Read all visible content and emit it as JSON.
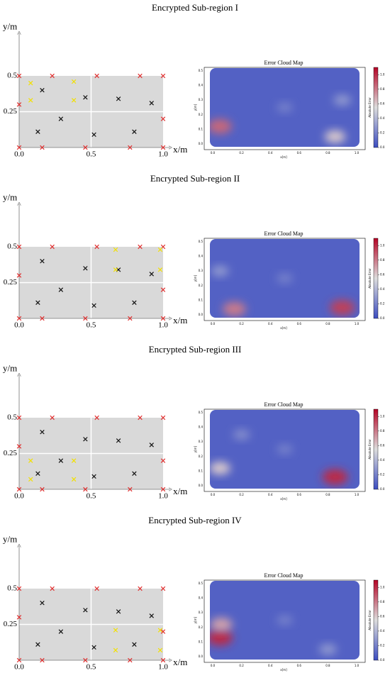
{
  "chart_data": [
    {
      "type": "scatter",
      "title": "Encrypted Sub-region I",
      "xlabel": "x/m",
      "ylabel": "y/m",
      "xlim": [
        0,
        1.05
      ],
      "ylim": [
        0,
        0.8
      ],
      "xticks": [
        {
          "value": 0,
          "label": "0.0"
        },
        0.5,
        {
          "value": 1,
          "label": "1.0"
        }
      ],
      "yticks": [
        0.25,
        0.5
      ],
      "region_color": "#d9d9d9",
      "series": [
        {
          "color": "#e03030",
          "x": [
            0,
            0.23,
            0.54,
            0.84,
            1.0,
            0,
            0.16,
            0.46,
            0.77,
            1.0,
            0,
            1.0
          ],
          "y": [
            0.5,
            0.5,
            0.5,
            0.5,
            0.5,
            0,
            0,
            0,
            0,
            0,
            0.3,
            0.2
          ]
        },
        {
          "color": "#111111",
          "x": [
            0.16,
            0.46,
            0.69,
            0.92,
            0.29,
            0.13,
            0.52,
            0.8
          ],
          "y": [
            0.4,
            0.35,
            0.34,
            0.31,
            0.2,
            0.11,
            0.09,
            0.11
          ]
        },
        {
          "color": "#f2e000",
          "x": [
            0.08,
            0.08,
            0.38,
            0.38
          ],
          "y": [
            0.45,
            0.33,
            0.46,
            0.33
          ]
        }
      ]
    },
    {
      "type": "heatmap",
      "title": "Error Cloud Map",
      "xlabel": "x[m]",
      "ylabel": "y[m]",
      "colorbar_label": "Absolute Error",
      "colormap": "coolwarm",
      "xlim": [
        0,
        1
      ],
      "ylim": [
        0,
        0.5
      ],
      "clim": [
        0,
        1.1
      ],
      "background_value": 0.08,
      "xticks": [
        {
          "value": 0,
          "label": "0.0"
        },
        0.2,
        0.4,
        0.6,
        0.8,
        {
          "value": 1,
          "label": "1.0"
        }
      ],
      "yticks": [
        {
          "value": 0,
          "label": "0.0"
        },
        0.1,
        0.2,
        0.3,
        0.4,
        0.5
      ],
      "cticks": [
        {
          "value": 0,
          "label": "0.0"
        },
        0.2,
        0.4,
        0.6,
        0.8,
        {
          "value": 1,
          "label": "1.0"
        }
      ],
      "hotspots": [
        {
          "x": 0.05,
          "y": 0.12,
          "value": 0.85
        },
        {
          "x": 0.85,
          "y": 0.05,
          "value": 0.6
        },
        {
          "x": 0.5,
          "y": 0.25,
          "value": 0.2
        },
        {
          "x": 0.9,
          "y": 0.3,
          "value": 0.3
        }
      ]
    },
    {
      "type": "scatter",
      "title": "Encrypted Sub-region II",
      "xlabel": "x/m",
      "ylabel": "y/m",
      "xlim": [
        0,
        1.05
      ],
      "ylim": [
        0,
        0.8
      ],
      "xticks": [
        {
          "value": 0,
          "label": "0.0"
        },
        0.5,
        {
          "value": 1,
          "label": "1.0"
        }
      ],
      "yticks": [
        0.25,
        0.5
      ],
      "region_color": "#d9d9d9",
      "series": [
        {
          "color": "#e03030",
          "x": [
            0,
            0.23,
            0.54,
            0.84,
            1.0,
            0,
            0.16,
            0.46,
            0.77,
            1.0,
            0,
            1.0
          ],
          "y": [
            0.5,
            0.5,
            0.5,
            0.5,
            0.5,
            0,
            0,
            0,
            0,
            0,
            0.3,
            0.2
          ]
        },
        {
          "color": "#111111",
          "x": [
            0.16,
            0.46,
            0.69,
            0.92,
            0.29,
            0.13,
            0.52,
            0.8
          ],
          "y": [
            0.4,
            0.35,
            0.34,
            0.31,
            0.2,
            0.11,
            0.09,
            0.11
          ]
        },
        {
          "color": "#f2e000",
          "x": [
            0.67,
            0.67,
            0.98,
            0.98
          ],
          "y": [
            0.48,
            0.34,
            0.48,
            0.34
          ]
        }
      ]
    },
    {
      "type": "heatmap",
      "title": "Error Cloud Map",
      "xlabel": "x[m]",
      "ylabel": "y[m]",
      "colorbar_label": "Absolute Error",
      "colormap": "coolwarm",
      "xlim": [
        0,
        1
      ],
      "ylim": [
        0,
        0.5
      ],
      "clim": [
        0,
        1.1
      ],
      "background_value": 0.08,
      "xticks": [
        {
          "value": 0,
          "label": "0.0"
        },
        0.2,
        0.4,
        0.6,
        0.8,
        {
          "value": 1,
          "label": "1.0"
        }
      ],
      "yticks": [
        {
          "value": 0,
          "label": "0.0"
        },
        0.1,
        0.2,
        0.3,
        0.4,
        0.5
      ],
      "cticks": [
        {
          "value": 0,
          "label": "0.0"
        },
        0.2,
        0.4,
        0.6,
        0.8,
        {
          "value": 1,
          "label": "1.0"
        }
      ],
      "hotspots": [
        {
          "x": 0.15,
          "y": 0.04,
          "value": 0.8
        },
        {
          "x": 0.9,
          "y": 0.05,
          "value": 0.95
        },
        {
          "x": 0.5,
          "y": 0.25,
          "value": 0.2
        },
        {
          "x": 0.05,
          "y": 0.3,
          "value": 0.3
        }
      ]
    },
    {
      "type": "scatter",
      "title": "Encrypted Sub-region III",
      "xlabel": "x/m",
      "ylabel": "y/m",
      "xlim": [
        0,
        1.05
      ],
      "ylim": [
        0,
        0.8
      ],
      "xticks": [
        {
          "value": 0,
          "label": "0.0"
        },
        0.5,
        {
          "value": 1,
          "label": "1.0"
        }
      ],
      "yticks": [
        0.25,
        0.5
      ],
      "region_color": "#d9d9d9",
      "series": [
        {
          "color": "#e03030",
          "x": [
            0,
            0.23,
            0.54,
            0.84,
            1.0,
            0,
            0.16,
            0.46,
            0.77,
            1.0,
            0,
            1.0
          ],
          "y": [
            0.5,
            0.5,
            0.5,
            0.5,
            0.5,
            0,
            0,
            0,
            0,
            0,
            0.3,
            0.2
          ]
        },
        {
          "color": "#111111",
          "x": [
            0.16,
            0.46,
            0.69,
            0.92,
            0.29,
            0.13,
            0.52,
            0.8
          ],
          "y": [
            0.4,
            0.35,
            0.34,
            0.31,
            0.2,
            0.11,
            0.09,
            0.11
          ]
        },
        {
          "color": "#f2e000",
          "x": [
            0.08,
            0.08,
            0.38,
            0.38
          ],
          "y": [
            0.2,
            0.07,
            0.2,
            0.07
          ]
        }
      ]
    },
    {
      "type": "heatmap",
      "title": "Error Cloud Map",
      "xlabel": "x[m]",
      "ylabel": "y[m]",
      "colorbar_label": "Absolute Error",
      "colormap": "coolwarm",
      "xlim": [
        0,
        1
      ],
      "ylim": [
        0,
        0.5
      ],
      "clim": [
        0,
        1.1
      ],
      "background_value": 0.08,
      "xticks": [
        {
          "value": 0,
          "label": "0.0"
        },
        0.2,
        0.4,
        0.6,
        0.8,
        {
          "value": 1,
          "label": "1.0"
        }
      ],
      "yticks": [
        {
          "value": 0,
          "label": "0.0"
        },
        0.1,
        0.2,
        0.3,
        0.4,
        0.5
      ],
      "cticks": [
        {
          "value": 0,
          "label": "0.0"
        },
        0.2,
        0.4,
        0.6,
        0.8,
        {
          "value": 1,
          "label": "1.0"
        }
      ],
      "hotspots": [
        {
          "x": 0.05,
          "y": 0.12,
          "value": 0.6
        },
        {
          "x": 0.85,
          "y": 0.06,
          "value": 1.0
        },
        {
          "x": 0.5,
          "y": 0.25,
          "value": 0.2
        },
        {
          "x": 0.2,
          "y": 0.35,
          "value": 0.25
        }
      ]
    },
    {
      "type": "scatter",
      "title": "Encrypted Sub-region IV",
      "xlabel": "x/m",
      "ylabel": "y/m",
      "xlim": [
        0,
        1.05
      ],
      "ylim": [
        0,
        0.8
      ],
      "xticks": [
        {
          "value": 0,
          "label": "0.0"
        },
        0.5,
        {
          "value": 1,
          "label": "1.0"
        }
      ],
      "yticks": [
        0.25,
        0.5
      ],
      "region_color": "#d9d9d9",
      "series": [
        {
          "color": "#e03030",
          "x": [
            0,
            0.23,
            0.54,
            0.84,
            1.0,
            0,
            0.16,
            0.46,
            0.77,
            1.0,
            0,
            1.0
          ],
          "y": [
            0.5,
            0.5,
            0.5,
            0.5,
            0.5,
            0,
            0,
            0,
            0,
            0,
            0.3,
            0.2
          ]
        },
        {
          "color": "#111111",
          "x": [
            0.16,
            0.46,
            0.69,
            0.92,
            0.29,
            0.13,
            0.52,
            0.8
          ],
          "y": [
            0.4,
            0.35,
            0.34,
            0.31,
            0.2,
            0.11,
            0.09,
            0.11
          ]
        },
        {
          "color": "#f2e000",
          "x": [
            0.67,
            0.67,
            0.98,
            0.98
          ],
          "y": [
            0.21,
            0.07,
            0.21,
            0.07
          ]
        }
      ]
    },
    {
      "type": "heatmap",
      "title": "Error Cloud Map",
      "xlabel": "x[m]",
      "ylabel": "y[m]",
      "colorbar_label": "Absolute Error",
      "colormap": "coolwarm",
      "xlim": [
        0,
        1
      ],
      "ylim": [
        0,
        0.5
      ],
      "clim": [
        0,
        1.1
      ],
      "background_value": 0.08,
      "xticks": [
        {
          "value": 0,
          "label": "0.0"
        },
        0.2,
        0.4,
        0.6,
        0.8,
        {
          "value": 1,
          "label": "1.0"
        }
      ],
      "yticks": [
        {
          "value": 0,
          "label": "0.0"
        },
        0.1,
        0.2,
        0.3,
        0.4,
        0.5
      ],
      "cticks": [
        {
          "value": 0,
          "label": "0.0"
        },
        0.2,
        0.4,
        0.6,
        0.8,
        {
          "value": 1,
          "label": "1.0"
        }
      ],
      "hotspots": [
        {
          "x": 0.05,
          "y": 0.13,
          "value": 1.0
        },
        {
          "x": 0.06,
          "y": 0.22,
          "value": 0.7
        },
        {
          "x": 0.8,
          "y": 0.05,
          "value": 0.3
        },
        {
          "x": 0.5,
          "y": 0.25,
          "value": 0.2
        }
      ]
    }
  ]
}
